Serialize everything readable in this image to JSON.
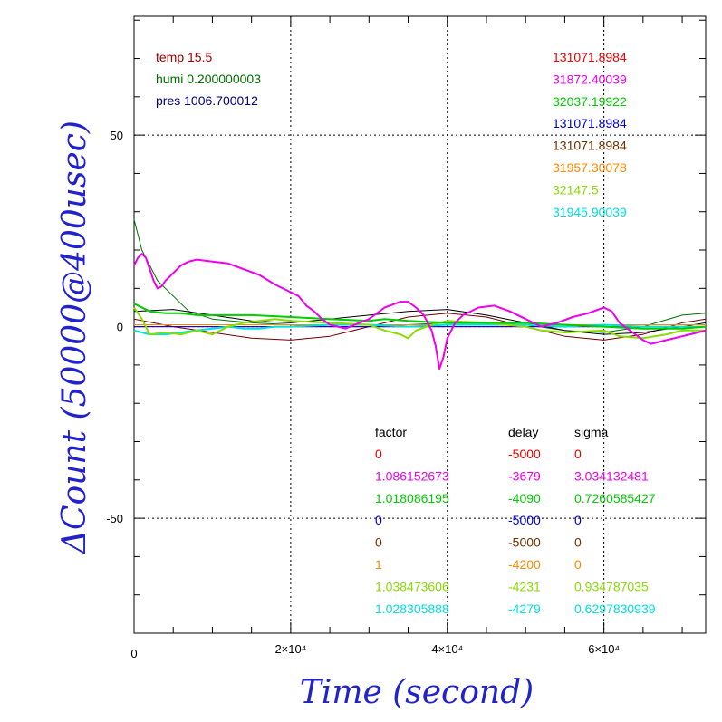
{
  "chart_data": {
    "type": "line",
    "xlabel": "Time (second)",
    "ylabel": "ΔCount (50000@400usec)",
    "xlim": [
      0,
      73000
    ],
    "ylim": [
      -80,
      81
    ],
    "grid": true,
    "x_ticks": [
      {
        "value": 0,
        "label": "0"
      },
      {
        "value": 20000,
        "label": "2×10⁴"
      },
      {
        "value": 40000,
        "label": "4×10⁴"
      },
      {
        "value": 60000,
        "label": "6×10⁴"
      }
    ],
    "y_ticks": [
      {
        "value": 50,
        "label": "50"
      },
      {
        "value": 0,
        "label": "0"
      },
      {
        "value": -50,
        "label": "-50"
      }
    ],
    "env_labels": [
      {
        "text": "temp 15.5",
        "color": "#a00000"
      },
      {
        "text": "humi 0.200000003",
        "color": "#007000"
      },
      {
        "text": "pres 1006.700012",
        "color": "#000080"
      }
    ],
    "table": {
      "headers": {
        "factor": "factor",
        "delay": "delay",
        "sigma": "sigma"
      },
      "rows": [
        {
          "factor": "0",
          "delay": "-5000",
          "sigma": "0",
          "color": "#ee0000"
        },
        {
          "factor": "1.086152673",
          "delay": "-3679",
          "sigma": "3.034132481",
          "color": "#ee00ee"
        },
        {
          "factor": "1.018086195",
          "delay": "-4090",
          "sigma": "0.7260585427",
          "color": "#00cc00"
        },
        {
          "factor": "0",
          "delay": "-5000",
          "sigma": "0",
          "color": "#0000dd"
        },
        {
          "factor": "0",
          "delay": "-5000",
          "sigma": "0",
          "color": "#703000"
        },
        {
          "factor": "1",
          "delay": "-4200",
          "sigma": "0",
          "color": "#ff8800"
        },
        {
          "factor": "1.038473606",
          "delay": "-4231",
          "sigma": "0.934787035",
          "color": "#88dd00"
        },
        {
          "factor": "1.028305888",
          "delay": "-4279",
          "sigma": "0.6297830939",
          "color": "#00e0e0"
        }
      ]
    },
    "counts": [
      {
        "text": "131071.8984",
        "color": "#ee0000"
      },
      {
        "text": "31872.40039",
        "color": "#ee00ee"
      },
      {
        "text": "32037.19922",
        "color": "#00cc00"
      },
      {
        "text": "131071.8984",
        "color": "#0000dd"
      },
      {
        "text": "131071.8984",
        "color": "#703000"
      },
      {
        "text": "31957.30078",
        "color": "#ff8800"
      },
      {
        "text": "32147.5",
        "color": "#88dd00"
      },
      {
        "text": "31945.90039",
        "color": "#00e0e0"
      }
    ],
    "series": [
      {
        "color": "#700000",
        "stroke": 1,
        "x": [
          0,
          5000,
          10000,
          15000,
          20000,
          25000,
          30000,
          35000,
          40000,
          45000,
          50000,
          55000,
          60000,
          65000,
          70000,
          73000
        ],
        "y": [
          2,
          0,
          -1.5,
          -3,
          -3.5,
          -2.5,
          0,
          2.5,
          3.5,
          2.5,
          0,
          -2.5,
          -3.5,
          -2,
          1,
          2
        ]
      },
      {
        "color": "#007000",
        "stroke": 1,
        "x": [
          0,
          1000,
          2000,
          3000,
          5000,
          7000,
          10000,
          15000,
          20000,
          25000,
          30000,
          35000,
          40000,
          45000,
          50000,
          55000,
          60000,
          65000,
          70000,
          73000
        ],
        "y": [
          28,
          20,
          16,
          12,
          8,
          4,
          2,
          1,
          0.5,
          0,
          0,
          0.5,
          1,
          1,
          0.5,
          -1,
          -1.5,
          0,
          3,
          3.5
        ]
      },
      {
        "color": "#000000",
        "stroke": 1,
        "x": [
          0,
          5000,
          10000,
          15000,
          20000,
          25000,
          30000,
          35000,
          40000,
          45000,
          50000,
          55000,
          60000,
          65000,
          70000,
          73000
        ],
        "y": [
          4,
          4.5,
          3,
          1.5,
          1,
          2,
          3,
          4,
          4.5,
          3,
          1,
          -1,
          -2,
          -1.5,
          0,
          1
        ]
      },
      {
        "color": "#ff8800",
        "stroke": 1,
        "x": [
          0,
          10000,
          20000,
          30000,
          40000,
          50000,
          60000,
          73000
        ],
        "y": [
          0.5,
          0.5,
          0.5,
          0.5,
          0.5,
          0.5,
          0.5,
          0.5
        ]
      },
      {
        "color": "#ee0000",
        "stroke": 1,
        "x": [
          0,
          73000
        ],
        "y": [
          0,
          0
        ]
      },
      {
        "color": "#0000dd",
        "stroke": 1,
        "x": [
          0,
          73000
        ],
        "y": [
          0,
          0
        ]
      },
      {
        "color": "#00e0e0",
        "stroke": 2,
        "x": [
          0,
          1000,
          2000,
          4000,
          6000,
          8000,
          10000,
          12000,
          14000,
          16000,
          18000,
          20000,
          25000,
          30000,
          35000,
          40000,
          45000,
          50000,
          55000,
          60000,
          65000,
          70000,
          73000
        ],
        "y": [
          -1,
          -1.5,
          -2,
          -2,
          -1.5,
          -1,
          -0.5,
          0,
          -0.5,
          -0.5,
          0,
          0,
          0.5,
          0.5,
          0,
          0.5,
          0.5,
          0.5,
          0,
          0.5,
          0,
          0,
          0
        ]
      },
      {
        "color": "#88dd00",
        "stroke": 2,
        "x": [
          0,
          1000,
          2000,
          4000,
          6000,
          8000,
          10000,
          12000,
          14000,
          16000,
          18000,
          20000,
          25000,
          30000,
          32000,
          34000,
          35000,
          36000,
          38000,
          40000,
          45000,
          50000,
          52000,
          55000,
          60000,
          62000,
          65000,
          68000,
          70000,
          73000
        ],
        "y": [
          5,
          2,
          -2,
          -1.5,
          -2,
          -1,
          -2,
          0,
          1,
          1.5,
          2,
          1.5,
          1,
          0.5,
          -1,
          -2,
          -3,
          -1,
          0.5,
          1.5,
          1,
          0,
          -1,
          -1.5,
          -1,
          -2.5,
          -3,
          -2,
          -1,
          -1
        ]
      },
      {
        "color": "#00cc00",
        "stroke": 2,
        "x": [
          0,
          2000,
          4000,
          6000,
          8000,
          10000,
          15000,
          20000,
          25000,
          30000,
          32000,
          35000,
          40000,
          45000,
          50000,
          55000,
          60000,
          65000,
          70000,
          73000
        ],
        "y": [
          6,
          4,
          3.5,
          3.5,
          3,
          3,
          3,
          2.5,
          2,
          1.5,
          2,
          1.5,
          1,
          1,
          1,
          0.5,
          0,
          -0.5,
          -0.5,
          0
        ]
      },
      {
        "color": "#ee00ee",
        "stroke": 2,
        "x": [
          0,
          500,
          1000,
          1500,
          2000,
          2500,
          3000,
          3500,
          4000,
          5000,
          6000,
          7000,
          8000,
          10000,
          12000,
          14000,
          16000,
          18000,
          20000,
          21000,
          22000,
          23000,
          24000,
          25000,
          27000,
          30000,
          32000,
          34000,
          35000,
          36000,
          37000,
          38000,
          38500,
          39000,
          39500,
          40000,
          41000,
          42000,
          44000,
          46000,
          48000,
          50000,
          52000,
          54000,
          56000,
          58000,
          60000,
          61000,
          62000,
          64000,
          65000,
          66000,
          68000,
          70000,
          72000,
          73000
        ],
        "y": [
          16,
          18,
          19,
          18,
          15,
          12,
          10,
          10.5,
          12,
          14,
          16,
          17,
          17.5,
          17,
          16.5,
          15,
          13.5,
          11,
          9,
          8,
          5.5,
          4,
          2,
          0.5,
          -0.5,
          2,
          5,
          6.5,
          6.5,
          5,
          3,
          -1,
          -5,
          -11,
          -8,
          -3,
          1,
          3,
          5,
          5.5,
          4,
          2,
          0,
          1,
          2.5,
          3.5,
          5,
          4,
          1,
          -2,
          -3.5,
          -4.5,
          -3.5,
          -2.5,
          -1.5,
          -1
        ]
      }
    ]
  }
}
